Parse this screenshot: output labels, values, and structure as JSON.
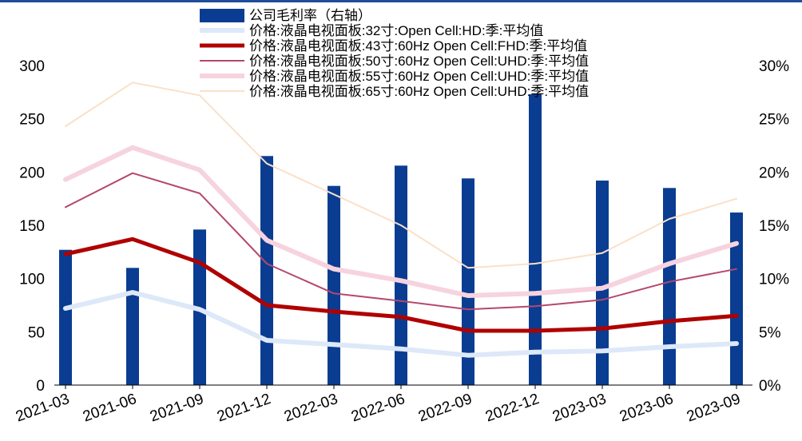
{
  "chart_data": {
    "type": "bar+line",
    "categories": [
      "2021-03",
      "2021-06",
      "2021-09",
      "2021-12",
      "2022-03",
      "2022-06",
      "2022-09",
      "2022-12",
      "2023-03",
      "2023-06",
      "2023-09"
    ],
    "left_axis": {
      "ylim": [
        0,
        300
      ],
      "ticks": [
        "0",
        "50",
        "100",
        "150",
        "200",
        "250",
        "300"
      ]
    },
    "right_axis": {
      "ylim": [
        0,
        30
      ],
      "ticks": [
        "0%",
        "5%",
        "10%",
        "15%",
        "20%",
        "25%",
        "30%"
      ]
    },
    "bar_series": {
      "name": "公司毛利率（右轴）",
      "axis": "right",
      "color": "#0a3d91",
      "values": [
        12.7,
        11.0,
        14.6,
        21.5,
        18.7,
        20.6,
        19.4,
        27.3,
        19.2,
        18.5,
        16.2
      ]
    },
    "line_series": [
      {
        "name": "价格:液晶电视面板:32寸:Open Cell:HD:季:平均值",
        "color": "#dde8f8",
        "width": 6,
        "values": [
          72,
          87,
          71,
          42,
          38,
          34,
          28,
          31,
          32,
          36,
          39
        ]
      },
      {
        "name": "价格:液晶电视面板:43寸:60Hz Open Cell:FHD:季:平均值",
        "color": "#b00000",
        "width": 5,
        "values": [
          123,
          137,
          115,
          75,
          69,
          64,
          51,
          51,
          53,
          60,
          65
        ]
      },
      {
        "name": "价格:液晶电视面板:50寸:60Hz Open Cell:UHD:季:平均值",
        "color": "#b4486e",
        "width": 2,
        "values": [
          167,
          199,
          180,
          114,
          86,
          79,
          71,
          74,
          80,
          97,
          109
        ]
      },
      {
        "name": "价格:液晶电视面板:55寸:60Hz Open Cell:UHD:季:平均值",
        "color": "#f6d3df",
        "width": 6,
        "values": [
          193,
          223,
          202,
          136,
          109,
          98,
          84,
          86,
          91,
          114,
          133
        ]
      },
      {
        "name": "价格:液晶电视面板:65寸:60Hz Open Cell:UHD:季:平均值",
        "color": "#fbe0c8",
        "width": 2,
        "values": [
          243,
          284,
          272,
          208,
          179,
          150,
          110,
          114,
          124,
          156,
          175
        ]
      }
    ],
    "legend_position": "top-center",
    "grid": false
  }
}
